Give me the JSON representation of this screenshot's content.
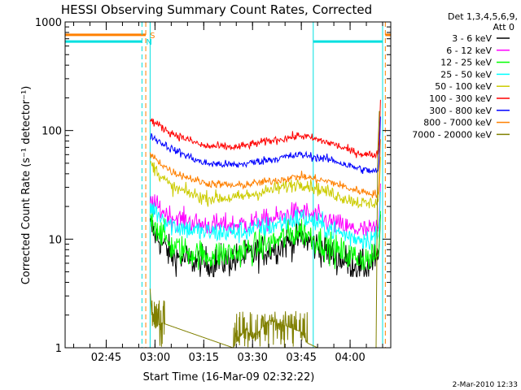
{
  "chart_data": {
    "type": "line",
    "title": "HESSI Observing Summary Count Rates, Corrected",
    "xlabel": "Start Time (16-Mar-09 02:32:22)",
    "ylabel": "Corrected Count Rate (s⁻¹ detector⁻¹)",
    "y_scale": "log",
    "ylim": [
      1,
      1000
    ],
    "y_ticks": [
      {
        "value": 1,
        "label": "1"
      },
      {
        "value": 10,
        "label": "10"
      },
      {
        "value": 100,
        "label": "100"
      },
      {
        "value": 1000,
        "label": "1000"
      }
    ],
    "xlim": [
      "02:32:22",
      "04:12:30"
    ],
    "x_ticks": [
      {
        "value": "02:45",
        "label": "02:45"
      },
      {
        "value": "03:00",
        "label": "03:00"
      },
      {
        "value": "03:15",
        "label": "03:15"
      },
      {
        "value": "03:30",
        "label": "03:30"
      },
      {
        "value": "03:45",
        "label": "03:45"
      },
      {
        "value": "04:00",
        "label": "04:00"
      }
    ],
    "legend": {
      "placement": "right",
      "header": [
        "Det 1,3,4,5,6,9,",
        "Att 0"
      ]
    },
    "data_start": "02:58:30",
    "flare_start": "04:08:30",
    "series": [
      {
        "name": "3 - 6 keV",
        "color": "#000000",
        "base": 8.2,
        "noise": 0.12,
        "bottom": 4.5,
        "x": [
          "02:58:30",
          "03:05",
          "03:15",
          "03:25",
          "03:35",
          "03:45",
          "03:55",
          "04:00",
          "04:05",
          "04:08"
        ],
        "y": [
          13,
          7,
          6,
          6.5,
          8,
          10.5,
          7,
          6,
          5.5,
          6.5
        ]
      },
      {
        "name": "6 - 12 keV",
        "color": "#ff00ff",
        "base": 14.0,
        "noise": 0.08,
        "x": [
          "02:58:30",
          "03:05",
          "03:15",
          "03:25",
          "03:35",
          "03:45",
          "03:55",
          "04:00",
          "04:05",
          "04:08"
        ],
        "y": [
          22,
          16,
          13.5,
          13.5,
          15,
          18,
          14,
          12.5,
          12,
          12.5
        ]
      },
      {
        "name": "12 - 25 keV",
        "color": "#00ff00",
        "base": 9.2,
        "noise": 0.11,
        "bottom": 5.2,
        "x": [
          "02:58:30",
          "03:05",
          "03:15",
          "03:25",
          "03:35",
          "03:45",
          "03:55",
          "04:00",
          "04:05",
          "04:08"
        ],
        "y": [
          16,
          8.5,
          7,
          7.5,
          9,
          12,
          8,
          7,
          6.5,
          7
        ]
      },
      {
        "name": "25 - 50 keV",
        "color": "#00ffff",
        "base": 12.5,
        "noise": 0.08,
        "x": [
          "02:58:30",
          "03:05",
          "03:15",
          "03:25",
          "03:35",
          "03:45",
          "03:55",
          "04:00",
          "04:05",
          "04:08"
        ],
        "y": [
          20,
          13.5,
          11.5,
          11.5,
          13,
          16,
          12,
          10.5,
          10,
          10.5
        ]
      },
      {
        "name": "50 - 100 keV",
        "color": "#cccc00",
        "base": 27.0,
        "noise": 0.05,
        "x": [
          "02:58:30",
          "03:05",
          "03:15",
          "03:25",
          "03:35",
          "03:45",
          "03:55",
          "04:00",
          "04:05",
          "04:08"
        ],
        "y": [
          50,
          30,
          24,
          24,
          28,
          33,
          26,
          23,
          21,
          22
        ]
      },
      {
        "name": "100 - 300 keV",
        "color": "#ff0000",
        "base": 70.0,
        "noise": 0.03,
        "x": [
          "02:58:30",
          "03:05",
          "03:15",
          "03:25",
          "03:35",
          "03:45",
          "03:55",
          "04:00",
          "04:05",
          "04:08"
        ],
        "y": [
          125,
          95,
          72,
          70,
          80,
          90,
          75,
          65,
          60,
          60
        ]
      },
      {
        "name": "300 - 800 keV",
        "color": "#0000ff",
        "base": 52.0,
        "noise": 0.03,
        "x": [
          "02:58:30",
          "03:05",
          "03:15",
          "03:25",
          "03:35",
          "03:45",
          "03:55",
          "04:00",
          "04:05",
          "04:08"
        ],
        "y": [
          90,
          68,
          50,
          48,
          54,
          60,
          53,
          47,
          43,
          42
        ]
      },
      {
        "name": "800 - 7000 keV",
        "color": "#ff8000",
        "base": 35.0,
        "noise": 0.03,
        "x": [
          "02:58:30",
          "03:05",
          "03:15",
          "03:25",
          "03:35",
          "03:45",
          "03:55",
          "04:00",
          "04:05",
          "04:08"
        ],
        "y": [
          60,
          42,
          33,
          31,
          34,
          38,
          33,
          29,
          27,
          26
        ]
      },
      {
        "name": "7000 - 20000 keV",
        "color": "#808000",
        "x": [
          "02:58:30",
          "02:59",
          "03:00",
          "03:02",
          "03:24",
          "03:28",
          "03:30",
          "03:35",
          "03:40",
          "03:45",
          "03:47",
          "03:50",
          "04:08",
          "04:08:30",
          "04:09"
        ],
        "y": [
          3.5,
          2,
          1.5,
          1.7,
          1,
          1.5,
          1.2,
          1.8,
          1.6,
          1.4,
          1.1,
          1,
          1,
          60,
          150
        ]
      }
    ],
    "flags": [
      {
        "name": "S",
        "color": "#ff8000",
        "dash_color": "#ff8000",
        "y": 760,
        "intervals": [
          [
            "02:32:22",
            "02:57:10"
          ],
          [
            "04:10:50",
            "04:12:30"
          ]
        ],
        "dashed_lines": [
          "02:57:10",
          "04:10:50"
        ]
      },
      {
        "name": "N",
        "color": "#00e0e0",
        "dash_color": "#00e0e0",
        "y": 660,
        "intervals": [
          [
            "02:32:22",
            "02:56:00"
          ],
          [
            "03:48:40",
            "04:10:00"
          ]
        ],
        "dashed_lines": [
          "02:56:00"
        ],
        "solid_lines": [
          "02:58:30",
          "03:48:40",
          "04:10:00"
        ]
      }
    ]
  },
  "footer": {
    "date": "2-Mar-2010 12:33"
  }
}
